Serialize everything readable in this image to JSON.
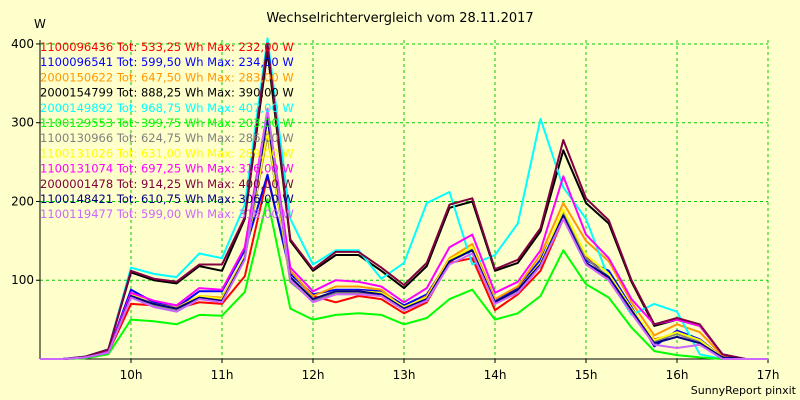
{
  "chart_data": {
    "type": "line",
    "title": "Wechselrichtervergleich vom 28.11.2017",
    "ylabel": "W",
    "footer": "SunnyReport pinxit",
    "ylim": [
      0,
      405
    ],
    "xlim": [
      9,
      17
    ],
    "x_ticks": [
      10,
      11,
      12,
      13,
      14,
      15,
      16,
      17
    ],
    "x_tick_labels": [
      "10h",
      "11h",
      "12h",
      "13h",
      "14h",
      "15h",
      "16h",
      "17h"
    ],
    "y_ticks": [
      100,
      200,
      300,
      400
    ],
    "y_tick_labels": [
      "100",
      "200",
      "300",
      "400"
    ],
    "grid": true,
    "legend": "top-left",
    "x": [
      9.0,
      9.25,
      9.5,
      9.75,
      10.0,
      10.25,
      10.5,
      10.75,
      11.0,
      11.25,
      11.5,
      11.75,
      12.0,
      12.25,
      12.5,
      12.75,
      13.0,
      13.25,
      13.5,
      13.75,
      14.0,
      14.25,
      14.5,
      14.75,
      15.0,
      15.25,
      15.5,
      15.75,
      16.0,
      16.25,
      16.5,
      16.75,
      17.0
    ],
    "series": [
      {
        "name": "1100096436 Tot: 533,25 Wh Max: 232,00 W",
        "color": "#ff0000",
        "values": [
          0,
          0,
          2,
          8,
          70,
          68,
          64,
          72,
          70,
          105,
          232,
          110,
          80,
          72,
          80,
          76,
          58,
          72,
          122,
          128,
          62,
          82,
          112,
          178,
          130,
          100,
          58,
          25,
          32,
          22,
          2,
          0,
          0
        ]
      },
      {
        "name": "1100096541 Tot: 599,50 Wh Max: 234,00 W",
        "color": "#0000ff",
        "values": [
          0,
          0,
          2,
          9,
          88,
          72,
          65,
          86,
          86,
          138,
          234,
          108,
          82,
          88,
          88,
          86,
          68,
          82,
          126,
          138,
          74,
          90,
          126,
          185,
          125,
          112,
          66,
          16,
          36,
          25,
          2,
          0,
          0
        ]
      },
      {
        "name": "2000150622 Tot: 647,50 Wh Max: 283,00 W",
        "color": "#ff9900",
        "values": [
          0,
          0,
          2,
          9,
          80,
          70,
          65,
          80,
          78,
          130,
          283,
          112,
          80,
          92,
          92,
          88,
          64,
          80,
          128,
          146,
          76,
          92,
          132,
          198,
          150,
          124,
          72,
          30,
          44,
          34,
          4,
          0,
          0
        ]
      },
      {
        "name": "2000154799 Tot: 888,25 Wh Max: 390,00 W",
        "color": "#000000",
        "values": [
          0,
          0,
          3,
          12,
          110,
          100,
          96,
          118,
          112,
          178,
          390,
          150,
          112,
          132,
          132,
          112,
          90,
          118,
          192,
          200,
          112,
          122,
          162,
          265,
          198,
          172,
          98,
          42,
          50,
          42,
          6,
          0,
          0
        ]
      },
      {
        "name": "2000149892 Tot: 968,75 Wh Max: 407,00 W",
        "color": "#00ffff",
        "values": [
          0,
          0,
          3,
          12,
          116,
          108,
          104,
          134,
          128,
          196,
          407,
          178,
          120,
          138,
          138,
          102,
          122,
          198,
          212,
          120,
          132,
          172,
          305,
          218,
          178,
          102,
          56,
          70,
          60,
          6,
          0,
          0,
          0
        ]
      },
      {
        "name": "1100129553 Tot: 399,75 Wh Max: 203,00 W",
        "color": "#00ff00",
        "values": [
          0,
          0,
          1,
          6,
          50,
          48,
          44,
          56,
          55,
          85,
          203,
          64,
          50,
          56,
          58,
          56,
          44,
          52,
          76,
          88,
          50,
          58,
          80,
          138,
          95,
          78,
          40,
          10,
          5,
          2,
          0,
          0,
          0
        ]
      },
      {
        "name": "1100130966 Tot: 624,75 Wh Max: 286,00 W",
        "color": "#808080",
        "values": [
          0,
          0,
          2,
          8,
          80,
          68,
          62,
          78,
          74,
          128,
          286,
          98,
          74,
          84,
          84,
          82,
          64,
          76,
          124,
          140,
          70,
          86,
          120,
          185,
          128,
          104,
          62,
          22,
          32,
          22,
          2,
          0,
          0
        ]
      },
      {
        "name": "1100131026 Tot: 631,00 Wh Max: 289,00 W",
        "color": "#ffff00",
        "values": [
          0,
          0,
          2,
          8,
          82,
          70,
          64,
          80,
          76,
          130,
          289,
          102,
          76,
          86,
          86,
          84,
          66,
          78,
          126,
          142,
          72,
          88,
          122,
          190,
          132,
          108,
          64,
          24,
          34,
          24,
          2,
          0,
          0
        ]
      },
      {
        "name": "1100131074 Tot: 697,25 Wh Max: 316,00 W",
        "color": "#ff00ff",
        "values": [
          0,
          0,
          2,
          9,
          84,
          74,
          68,
          90,
          88,
          142,
          316,
          116,
          86,
          100,
          98,
          92,
          72,
          90,
          142,
          158,
          84,
          98,
          138,
          232,
          158,
          128,
          76,
          44,
          50,
          42,
          6,
          0,
          0
        ]
      },
      {
        "name": "2000001478 Tot: 914,25 Wh Max: 400,00 W",
        "color": "#800040",
        "values": [
          0,
          0,
          3,
          12,
          112,
          102,
          98,
          120,
          120,
          180,
          400,
          152,
          114,
          136,
          136,
          116,
          94,
          122,
          196,
          204,
          114,
          126,
          166,
          278,
          204,
          176,
          100,
          44,
          52,
          44,
          6,
          0,
          0
        ]
      },
      {
        "name": "1100148421 Tot: 610,75 Wh Max: 306,00 W",
        "color": "#000080",
        "values": [
          0,
          0,
          2,
          8,
          80,
          70,
          64,
          78,
          74,
          128,
          306,
          104,
          76,
          86,
          86,
          82,
          64,
          76,
          124,
          138,
          72,
          88,
          120,
          182,
          122,
          104,
          62,
          20,
          28,
          20,
          2,
          0,
          0
        ]
      },
      {
        "name": "1100119477 Tot: 599,00 Wh Max: 318,00 W",
        "color": "#cc66ff",
        "values": [
          0,
          0,
          2,
          8,
          78,
          66,
          60,
          76,
          72,
          126,
          318,
          100,
          72,
          82,
          82,
          80,
          62,
          74,
          120,
          134,
          70,
          84,
          118,
          178,
          120,
          100,
          58,
          18,
          14,
          18,
          0,
          0,
          0
        ]
      }
    ]
  }
}
